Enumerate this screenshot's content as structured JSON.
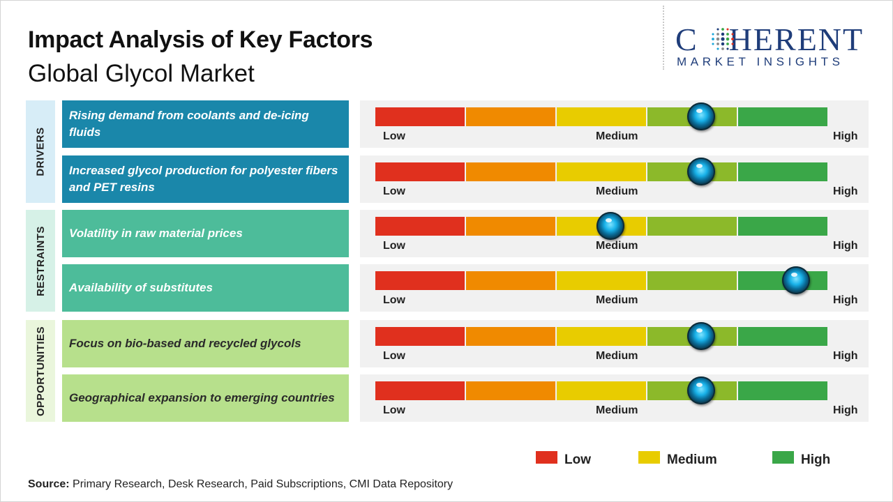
{
  "header": {
    "title": "Impact Analysis of Key Factors",
    "subtitle": "Global Glycol Market"
  },
  "logo": {
    "word_left": "C",
    "word_right": "HERENT",
    "tagline": "MARKET INSIGHTS",
    "color": "#1f3d7a"
  },
  "chart_data": {
    "type": "table",
    "title": "Impact Analysis of Key Factors",
    "subtitle": "Global Glycol Market",
    "scale_labels": [
      "Low",
      "Medium",
      "High"
    ],
    "scale_range": [
      0,
      100
    ],
    "segment_colors": [
      "#e0301e",
      "#f08a00",
      "#e8cc00",
      "#8cb92a",
      "#3aa748"
    ],
    "categories": [
      {
        "name": "DRIVERS",
        "color": "#1a87aa",
        "cat_bg": "#d7edf7",
        "factors": [
          {
            "label": "Rising demand from coolants and de-icing fluids",
            "impact": 72
          },
          {
            "label": "Increased glycol production for polyester fibers and PET resins",
            "impact": 72
          }
        ]
      },
      {
        "name": "RESTRAINTS",
        "color": "#4dbc9a",
        "cat_bg": "#d6f1e7",
        "factors": [
          {
            "label": "Volatility  in raw material  prices",
            "impact": 52
          },
          {
            "label": "Availability  of substitutes",
            "impact": 93
          }
        ]
      },
      {
        "name": "OPPORTUNITIES",
        "color": "#b7e08c",
        "cat_bg": "#eaf6dc",
        "factors": [
          {
            "label": "Focus on bio-based  and recycled glycols",
            "impact": 72
          },
          {
            "label": "Geographical  expansion  to emerging countries",
            "impact": 72
          }
        ]
      }
    ],
    "legend": [
      {
        "label": "Low",
        "color": "#e0301e"
      },
      {
        "label": "Medium",
        "color": "#e8cc00"
      },
      {
        "label": "High",
        "color": "#3aa748"
      }
    ]
  },
  "source": {
    "label": "Source:",
    "text": " Primary Research, Desk Research, Paid Subscriptions, CMI Data Repository"
  }
}
